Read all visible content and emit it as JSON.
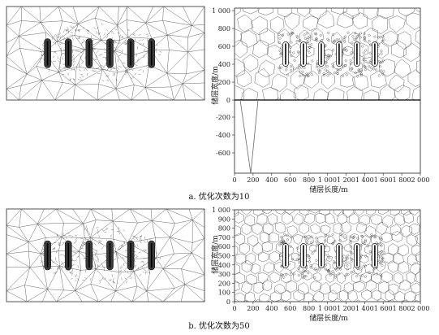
{
  "figure_a": {
    "caption": "a. 优化次数为10",
    "ylabel": "储层宽度/m",
    "xlabel": "储层长度/m",
    "y_ticks_top": [
      "1 000",
      "800",
      "600",
      "400",
      "200",
      "0"
    ],
    "y_ticks_bottom": [
      "-200",
      "-400",
      "-600"
    ],
    "x_ticks": [
      "0",
      "200",
      "400",
      "600",
      "800",
      "1 000",
      "1 200",
      "1 400",
      "1 600",
      "1 800",
      "2 000"
    ],
    "well_count": 6
  },
  "figure_b": {
    "caption": "b. 优化次数为50",
    "ylabel": "储层宽度/m",
    "xlabel": "储层长度/m",
    "y_ticks": [
      "1 000",
      "900",
      "800",
      "700",
      "600",
      "500",
      "400",
      "300",
      "200",
      "100",
      "0"
    ],
    "x_ticks": [
      "0",
      "200",
      "400",
      "600",
      "800",
      "1 000",
      "1 200",
      "1 400",
      "1 600",
      "1 800",
      "2 000"
    ],
    "well_count": 6
  },
  "colors": {
    "mesh": "#555555",
    "well": "#222222",
    "dense": "#3a3a3a"
  }
}
